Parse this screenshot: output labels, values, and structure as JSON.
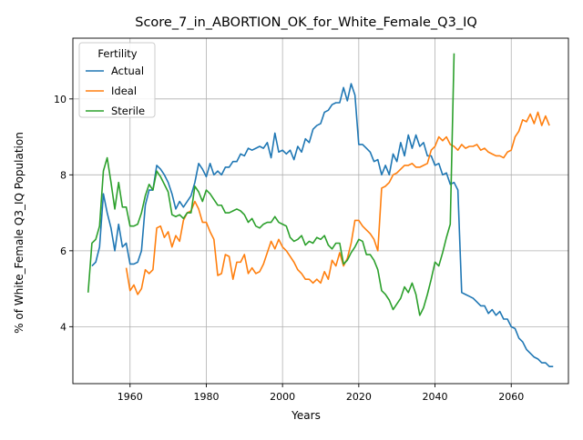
{
  "chart_data": {
    "type": "line",
    "title": "Score_7_in_ABORTION_OK_for_White_Female_Q3_IQ",
    "xlabel": "Years",
    "ylabel": "% of White_Female Q3_IQ Population",
    "xlim": [
      1945,
      2075
    ],
    "ylim": [
      2.5,
      11.6
    ],
    "xticks": [
      1960,
      1980,
      2000,
      2020,
      2040,
      2060
    ],
    "yticks": [
      4,
      6,
      8,
      10
    ],
    "grid": true,
    "legend": {
      "title": "Fertility",
      "position": "top-left"
    },
    "series": [
      {
        "name": "Actual",
        "color": "#1f77b4",
        "x_start": 1950,
        "values": [
          5.6,
          5.7,
          6.1,
          7.5,
          7.0,
          6.6,
          6.0,
          6.7,
          6.1,
          6.2,
          5.65,
          5.65,
          5.7,
          6.0,
          7.2,
          7.6,
          7.6,
          8.25,
          8.15,
          8.0,
          7.8,
          7.5,
          7.1,
          7.3,
          7.15,
          7.3,
          7.45,
          7.8,
          8.3,
          8.15,
          7.95,
          8.3,
          8.0,
          8.1,
          8.0,
          8.2,
          8.2,
          8.35,
          8.35,
          8.55,
          8.5,
          8.7,
          8.65,
          8.7,
          8.75,
          8.7,
          8.85,
          8.45,
          9.1,
          8.6,
          8.65,
          8.55,
          8.65,
          8.4,
          8.75,
          8.6,
          8.95,
          8.85,
          9.2,
          9.3,
          9.35,
          9.65,
          9.7,
          9.85,
          9.9,
          9.9,
          10.3,
          9.95,
          10.4,
          10.1,
          8.8,
          8.8,
          8.7,
          8.6,
          8.35,
          8.4,
          8.0,
          8.25,
          8.0,
          8.55,
          8.35,
          8.85,
          8.5,
          9.05,
          8.7,
          9.05,
          8.75,
          8.85,
          8.5,
          8.5,
          8.25,
          8.3,
          8.0,
          8.05,
          7.75,
          7.8,
          7.6,
          4.9,
          4.85,
          4.8,
          4.75,
          4.65,
          4.55,
          4.55,
          4.35,
          4.45,
          4.3,
          4.4,
          4.2,
          4.2,
          4.0,
          3.95,
          3.7,
          3.6,
          3.4,
          3.3,
          3.2,
          3.15,
          3.05,
          3.05,
          2.95,
          2.95
        ]
      },
      {
        "name": "Ideal",
        "color": "#ff7f0e",
        "x_start": 1959,
        "values": [
          5.55,
          4.95,
          5.1,
          4.85,
          5.0,
          5.5,
          5.4,
          5.5,
          6.6,
          6.65,
          6.35,
          6.5,
          6.1,
          6.4,
          6.25,
          6.8,
          7.0,
          7.05,
          7.3,
          7.1,
          6.75,
          6.75,
          6.5,
          6.3,
          5.35,
          5.4,
          5.9,
          5.85,
          5.25,
          5.7,
          5.7,
          5.9,
          5.4,
          5.55,
          5.4,
          5.45,
          5.65,
          5.95,
          6.25,
          6.05,
          6.3,
          6.1,
          6.0,
          5.85,
          5.7,
          5.5,
          5.4,
          5.25,
          5.25,
          5.15,
          5.25,
          5.15,
          5.45,
          5.25,
          5.75,
          5.6,
          5.95,
          5.6,
          5.8,
          6.2,
          6.8,
          6.8,
          6.65,
          6.55,
          6.45,
          6.3,
          6.0,
          7.65,
          7.7,
          7.8,
          8.0,
          8.05,
          8.15,
          8.25,
          8.25,
          8.3,
          8.2,
          8.2,
          8.25,
          8.3,
          8.65,
          8.75,
          9.0,
          8.9,
          9.0,
          8.8,
          8.75,
          8.65,
          8.8,
          8.7,
          8.75,
          8.75,
          8.8,
          8.65,
          8.7,
          8.6,
          8.55,
          8.5,
          8.5,
          8.45,
          8.6,
          8.65,
          9.0,
          9.15,
          9.45,
          9.4,
          9.6,
          9.35,
          9.65,
          9.3,
          9.55,
          9.3
        ]
      },
      {
        "name": "Sterile",
        "color": "#2ca02c",
        "x_start": 1949,
        "values": [
          4.9,
          6.2,
          6.3,
          6.65,
          8.1,
          8.45,
          7.8,
          7.1,
          7.8,
          7.15,
          7.15,
          6.65,
          6.65,
          6.7,
          7.0,
          7.45,
          7.75,
          7.6,
          8.1,
          7.95,
          7.75,
          7.55,
          6.95,
          6.9,
          6.95,
          6.85,
          7.0,
          7.0,
          7.7,
          7.55,
          7.3,
          7.6,
          7.5,
          7.35,
          7.2,
          7.2,
          7.0,
          7.0,
          7.05,
          7.1,
          7.05,
          6.95,
          6.75,
          6.85,
          6.65,
          6.6,
          6.7,
          6.75,
          6.75,
          6.9,
          6.75,
          6.7,
          6.65,
          6.35,
          6.25,
          6.3,
          6.4,
          6.15,
          6.25,
          6.2,
          6.35,
          6.3,
          6.4,
          6.15,
          6.05,
          6.2,
          6.2,
          5.65,
          5.75,
          5.95,
          6.1,
          6.3,
          6.25,
          5.9,
          5.9,
          5.75,
          5.5,
          4.95,
          4.85,
          4.7,
          4.45,
          4.6,
          4.75,
          5.05,
          4.9,
          5.15,
          4.85,
          4.3,
          4.5,
          4.85,
          5.25,
          5.7,
          5.6,
          5.95,
          6.35,
          6.7,
          11.2
        ]
      }
    ]
  }
}
